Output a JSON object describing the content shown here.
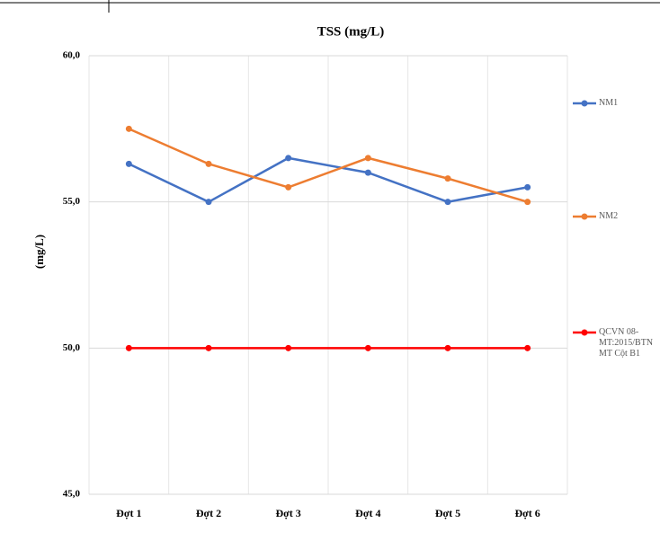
{
  "chart_data": {
    "type": "line",
    "title": "TSS (mg/L)",
    "y_label": "(mg/L)",
    "categories": [
      "Đợt 1",
      "Đợt 2",
      "Đợt 3",
      "Đợt 4",
      "Đợt 5",
      "Đợt 6"
    ],
    "series": [
      {
        "name": "NM1",
        "color": "#4472c4",
        "values": [
          56.3,
          55.0,
          56.5,
          56.0,
          55.0,
          55.5
        ]
      },
      {
        "name": "NM2",
        "color": "#ed7d31",
        "values": [
          57.5,
          56.3,
          55.5,
          56.5,
          55.8,
          55.0
        ]
      },
      {
        "name": "QCVN 08-MT:2015/BTNMT Cột B1",
        "color": "#ff0000",
        "values": [
          50,
          50,
          50,
          50,
          50,
          50
        ]
      }
    ],
    "ylim": [
      45,
      60
    ],
    "yticks": [
      {
        "value": 45,
        "label": "45,0"
      },
      {
        "value": 50,
        "label": "50,0"
      },
      {
        "value": 55,
        "label": "55,0"
      },
      {
        "value": 60,
        "label": "60,0"
      }
    ],
    "grid": true,
    "legend": "right"
  }
}
